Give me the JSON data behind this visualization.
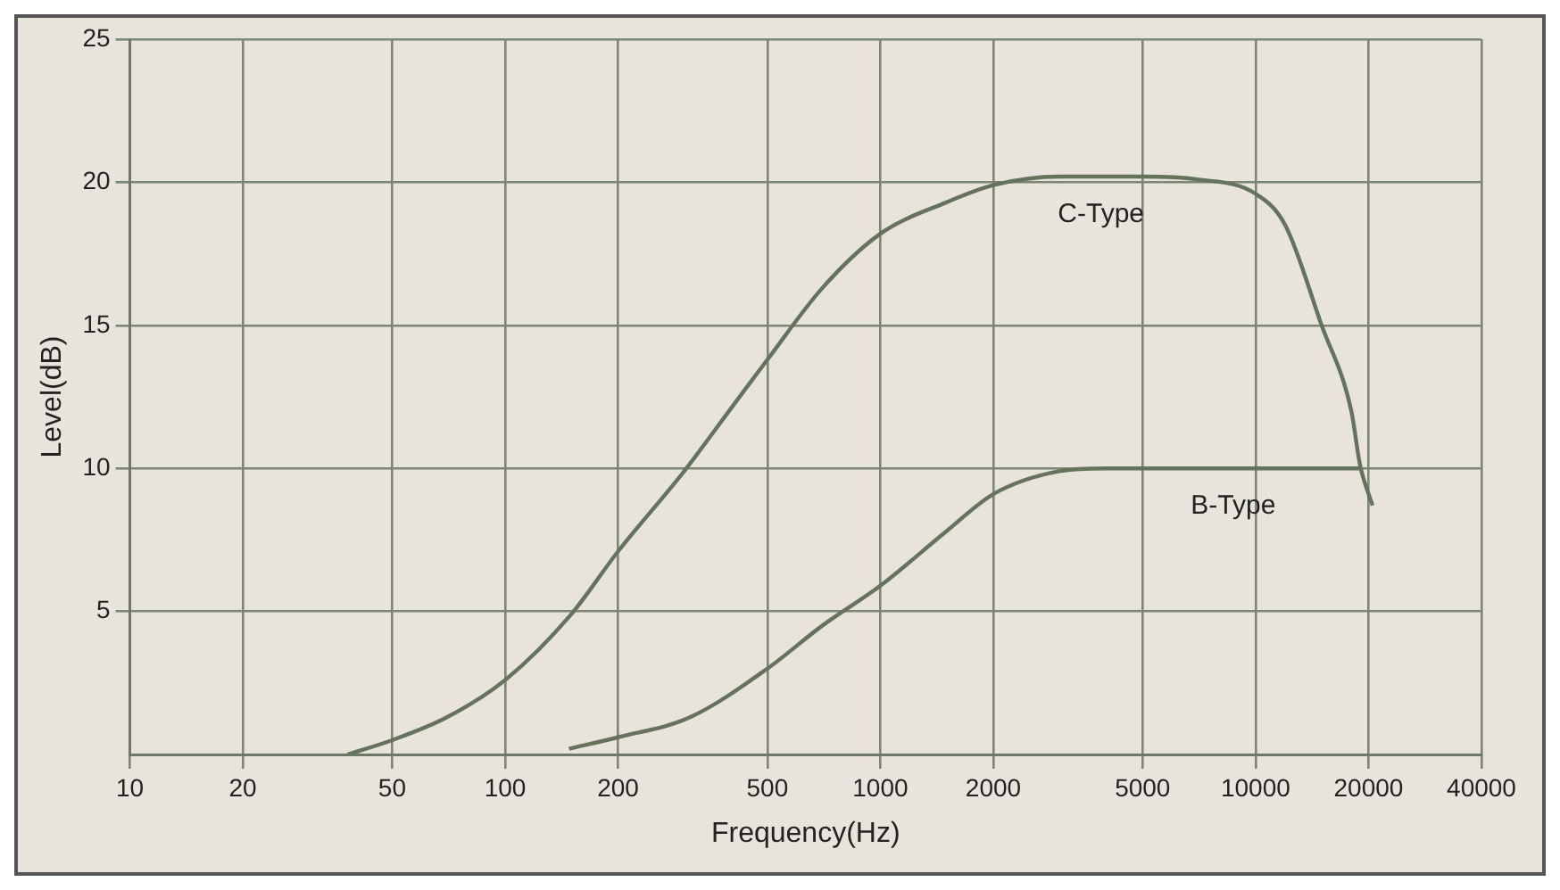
{
  "chart_data": {
    "type": "line",
    "xlabel": "Frequency(Hz)",
    "ylabel": "Level(dB)",
    "log": "x",
    "xlim": [
      10,
      40000
    ],
    "xticks": [
      10,
      20,
      50,
      100,
      200,
      500,
      1000,
      2000,
      5000,
      10000,
      20000,
      40000
    ],
    "ylim": [
      0,
      25
    ],
    "yticks": [
      5,
      10,
      15,
      20,
      25
    ],
    "grid": true,
    "legend": false,
    "marker": "none",
    "line_style": "solid",
    "series": [
      {
        "name": "C-Type",
        "color": "#66735c",
        "x": [
          38,
          50,
          70,
          100,
          150,
          200,
          300,
          400,
          500,
          700,
          1000,
          1500,
          2000,
          3000,
          4000,
          5000,
          7000,
          10000,
          12000,
          15000,
          18000,
          19000,
          20500
        ],
        "values": [
          0,
          0.5,
          1.3,
          2.6,
          4.9,
          7.1,
          9.9,
          12.1,
          13.8,
          16.3,
          18.2,
          19.3,
          19.9,
          20.2,
          20.2,
          20.2,
          20.1,
          19.6,
          18.5,
          15,
          12,
          10.1,
          8.7
        ]
      },
      {
        "name": "B-Type",
        "color": "#66735c",
        "x": [
          148,
          200,
          311,
          500,
          700,
          1000,
          1500,
          2000,
          3000,
          4000,
          5000,
          10000,
          15000,
          19000
        ],
        "values": [
          0.2,
          0.6,
          1.3,
          3,
          4.5,
          5.9,
          7.8,
          9.1,
          9.9,
          10,
          10,
          10,
          10,
          10
        ]
      }
    ]
  }
}
